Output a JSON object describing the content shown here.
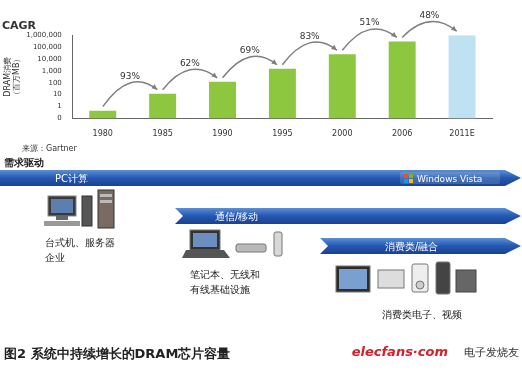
{
  "chart_data": {
    "type": "bar",
    "title": "CAGR",
    "y_label": [
      "DRAM消费",
      "（百万MB）"
    ],
    "categories": [
      "1980",
      "1985",
      "1990",
      "1995",
      "2000",
      "2006",
      "2011E"
    ],
    "values": [
      0.45,
      12,
      120,
      1500,
      25000,
      300000,
      1000000
    ],
    "colors": [
      "#8dc63f",
      "#8dc63f",
      "#8dc63f",
      "#8dc63f",
      "#8dc63f",
      "#8dc63f",
      "#bfe2f2"
    ],
    "log": "y",
    "ylim": [
      0.1,
      1000000
    ],
    "yticks": [
      {
        "value": 0.1,
        "label": "0"
      },
      1,
      10,
      100,
      {
        "value": 1000,
        "label": "1,000"
      },
      {
        "value": 10000,
        "label": "10,000"
      },
      {
        "value": 100000,
        "label": "100,000"
      },
      {
        "value": 1000000,
        "label": "1,000,000"
      }
    ],
    "grid": false,
    "annotations": [
      "93%",
      "62%",
      "69%",
      "83%",
      "51%",
      "48%"
    ],
    "source": "来源：Gartner"
  },
  "diagram": {
    "heading": "需求驱动",
    "bands": [
      "PC计算",
      "通信/移动",
      "消费类/融合"
    ],
    "logo": "Windows Vista",
    "groups": [
      [
        "台式机、服务器",
        "企业"
      ],
      [
        "笔记本、无线和",
        "有线基础设施"
      ],
      [
        "消费类电子、视频"
      ]
    ]
  },
  "caption": "图2 系统中持续增长的DRAM芯片容量",
  "watermark": [
    "elecfans·com",
    "电子发烧友"
  ]
}
